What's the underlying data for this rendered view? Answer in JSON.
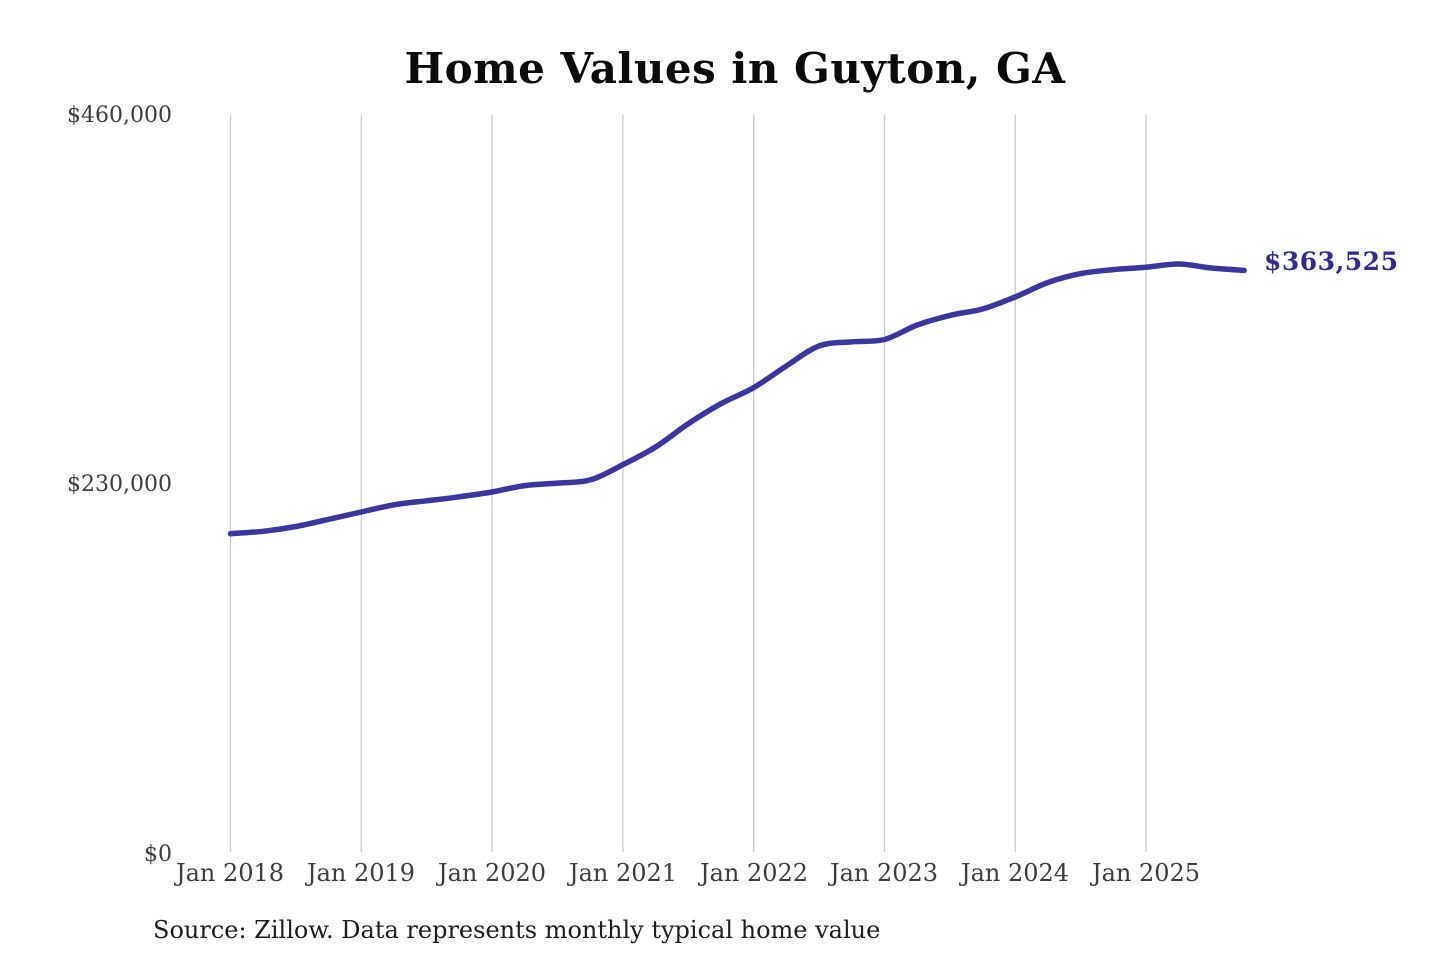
{
  "page": {
    "background": "#ffffff"
  },
  "chart_data": {
    "type": "line",
    "title": "Home Values in Guyton, GA",
    "xlabel": "",
    "ylabel": "",
    "grid": "vertical-only",
    "legend": "none",
    "xlim": [
      2018.0,
      2025.83
    ],
    "ylim": [
      0,
      460000
    ],
    "x_ticks": [
      2018,
      2019,
      2020,
      2021,
      2022,
      2023,
      2024,
      2025
    ],
    "x_tick_labels": [
      "Jan 2018",
      "Jan 2019",
      "Jan 2020",
      "Jan 2021",
      "Jan 2022",
      "Jan 2023",
      "Jan 2024",
      "Jan 2025"
    ],
    "y_ticks": [
      0,
      230000,
      460000
    ],
    "y_tick_labels": [
      "$0",
      "$230,000",
      "$460,000"
    ],
    "end_label": "$363,525",
    "end_value": 363525,
    "source_note": "Source: Zillow. Data represents monthly typical home value",
    "series": [
      {
        "name": "Typical home value",
        "color": "#3b35a0",
        "points": [
          [
            2018.0,
            199500
          ],
          [
            2018.25,
            201000
          ],
          [
            2018.5,
            204000
          ],
          [
            2018.75,
            208500
          ],
          [
            2019.0,
            213000
          ],
          [
            2019.25,
            217500
          ],
          [
            2019.5,
            220000
          ],
          [
            2019.75,
            222500
          ],
          [
            2020.0,
            225500
          ],
          [
            2020.25,
            229500
          ],
          [
            2020.5,
            231000
          ],
          [
            2020.75,
            233000
          ],
          [
            2021.0,
            242500
          ],
          [
            2021.25,
            253500
          ],
          [
            2021.5,
            268000
          ],
          [
            2021.75,
            280500
          ],
          [
            2022.0,
            290500
          ],
          [
            2022.25,
            304000
          ],
          [
            2022.5,
            316500
          ],
          [
            2022.75,
            319000
          ],
          [
            2023.0,
            320500
          ],
          [
            2023.25,
            329500
          ],
          [
            2023.5,
            335500
          ],
          [
            2023.75,
            339500
          ],
          [
            2024.0,
            347000
          ],
          [
            2024.25,
            356000
          ],
          [
            2024.5,
            361500
          ],
          [
            2024.75,
            364000
          ],
          [
            2025.0,
            365500
          ],
          [
            2025.25,
            367500
          ],
          [
            2025.5,
            365000
          ],
          [
            2025.75,
            363525
          ]
        ]
      }
    ]
  },
  "colors": {
    "line": "#3b35a0",
    "end_label": "#322c91",
    "grid": "#c9c9c9",
    "axis_text": "#3d3d3d",
    "title_text": "#0b0b0b",
    "source_text": "#1d1d1d"
  }
}
